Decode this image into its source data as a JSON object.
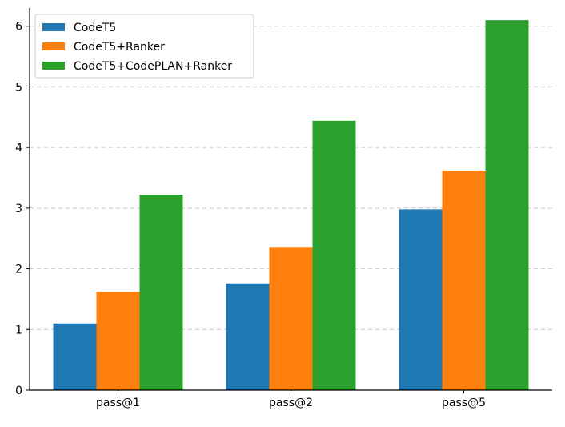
{
  "chart_data": {
    "type": "bar",
    "title": "",
    "xlabel": "",
    "ylabel": "",
    "categories": [
      "pass@1",
      "pass@2",
      "pass@5"
    ],
    "series": [
      {
        "name": "CodeT5",
        "values": [
          1.1,
          1.76,
          2.98
        ],
        "color": "#1f77b4"
      },
      {
        "name": "CodeT5+Ranker",
        "values": [
          1.62,
          2.36,
          3.62
        ],
        "color": "#ff7f0e"
      },
      {
        "name": "CodeT5+CodePLAN+Ranker",
        "values": [
          3.22,
          4.44,
          6.1
        ],
        "color": "#2ca02c"
      }
    ],
    "ylim": [
      0,
      6.3
    ],
    "yticks": [
      "0",
      "1",
      "2",
      "3",
      "4",
      "5",
      "6"
    ],
    "grid": "y-dashed",
    "legend": "top-left"
  }
}
